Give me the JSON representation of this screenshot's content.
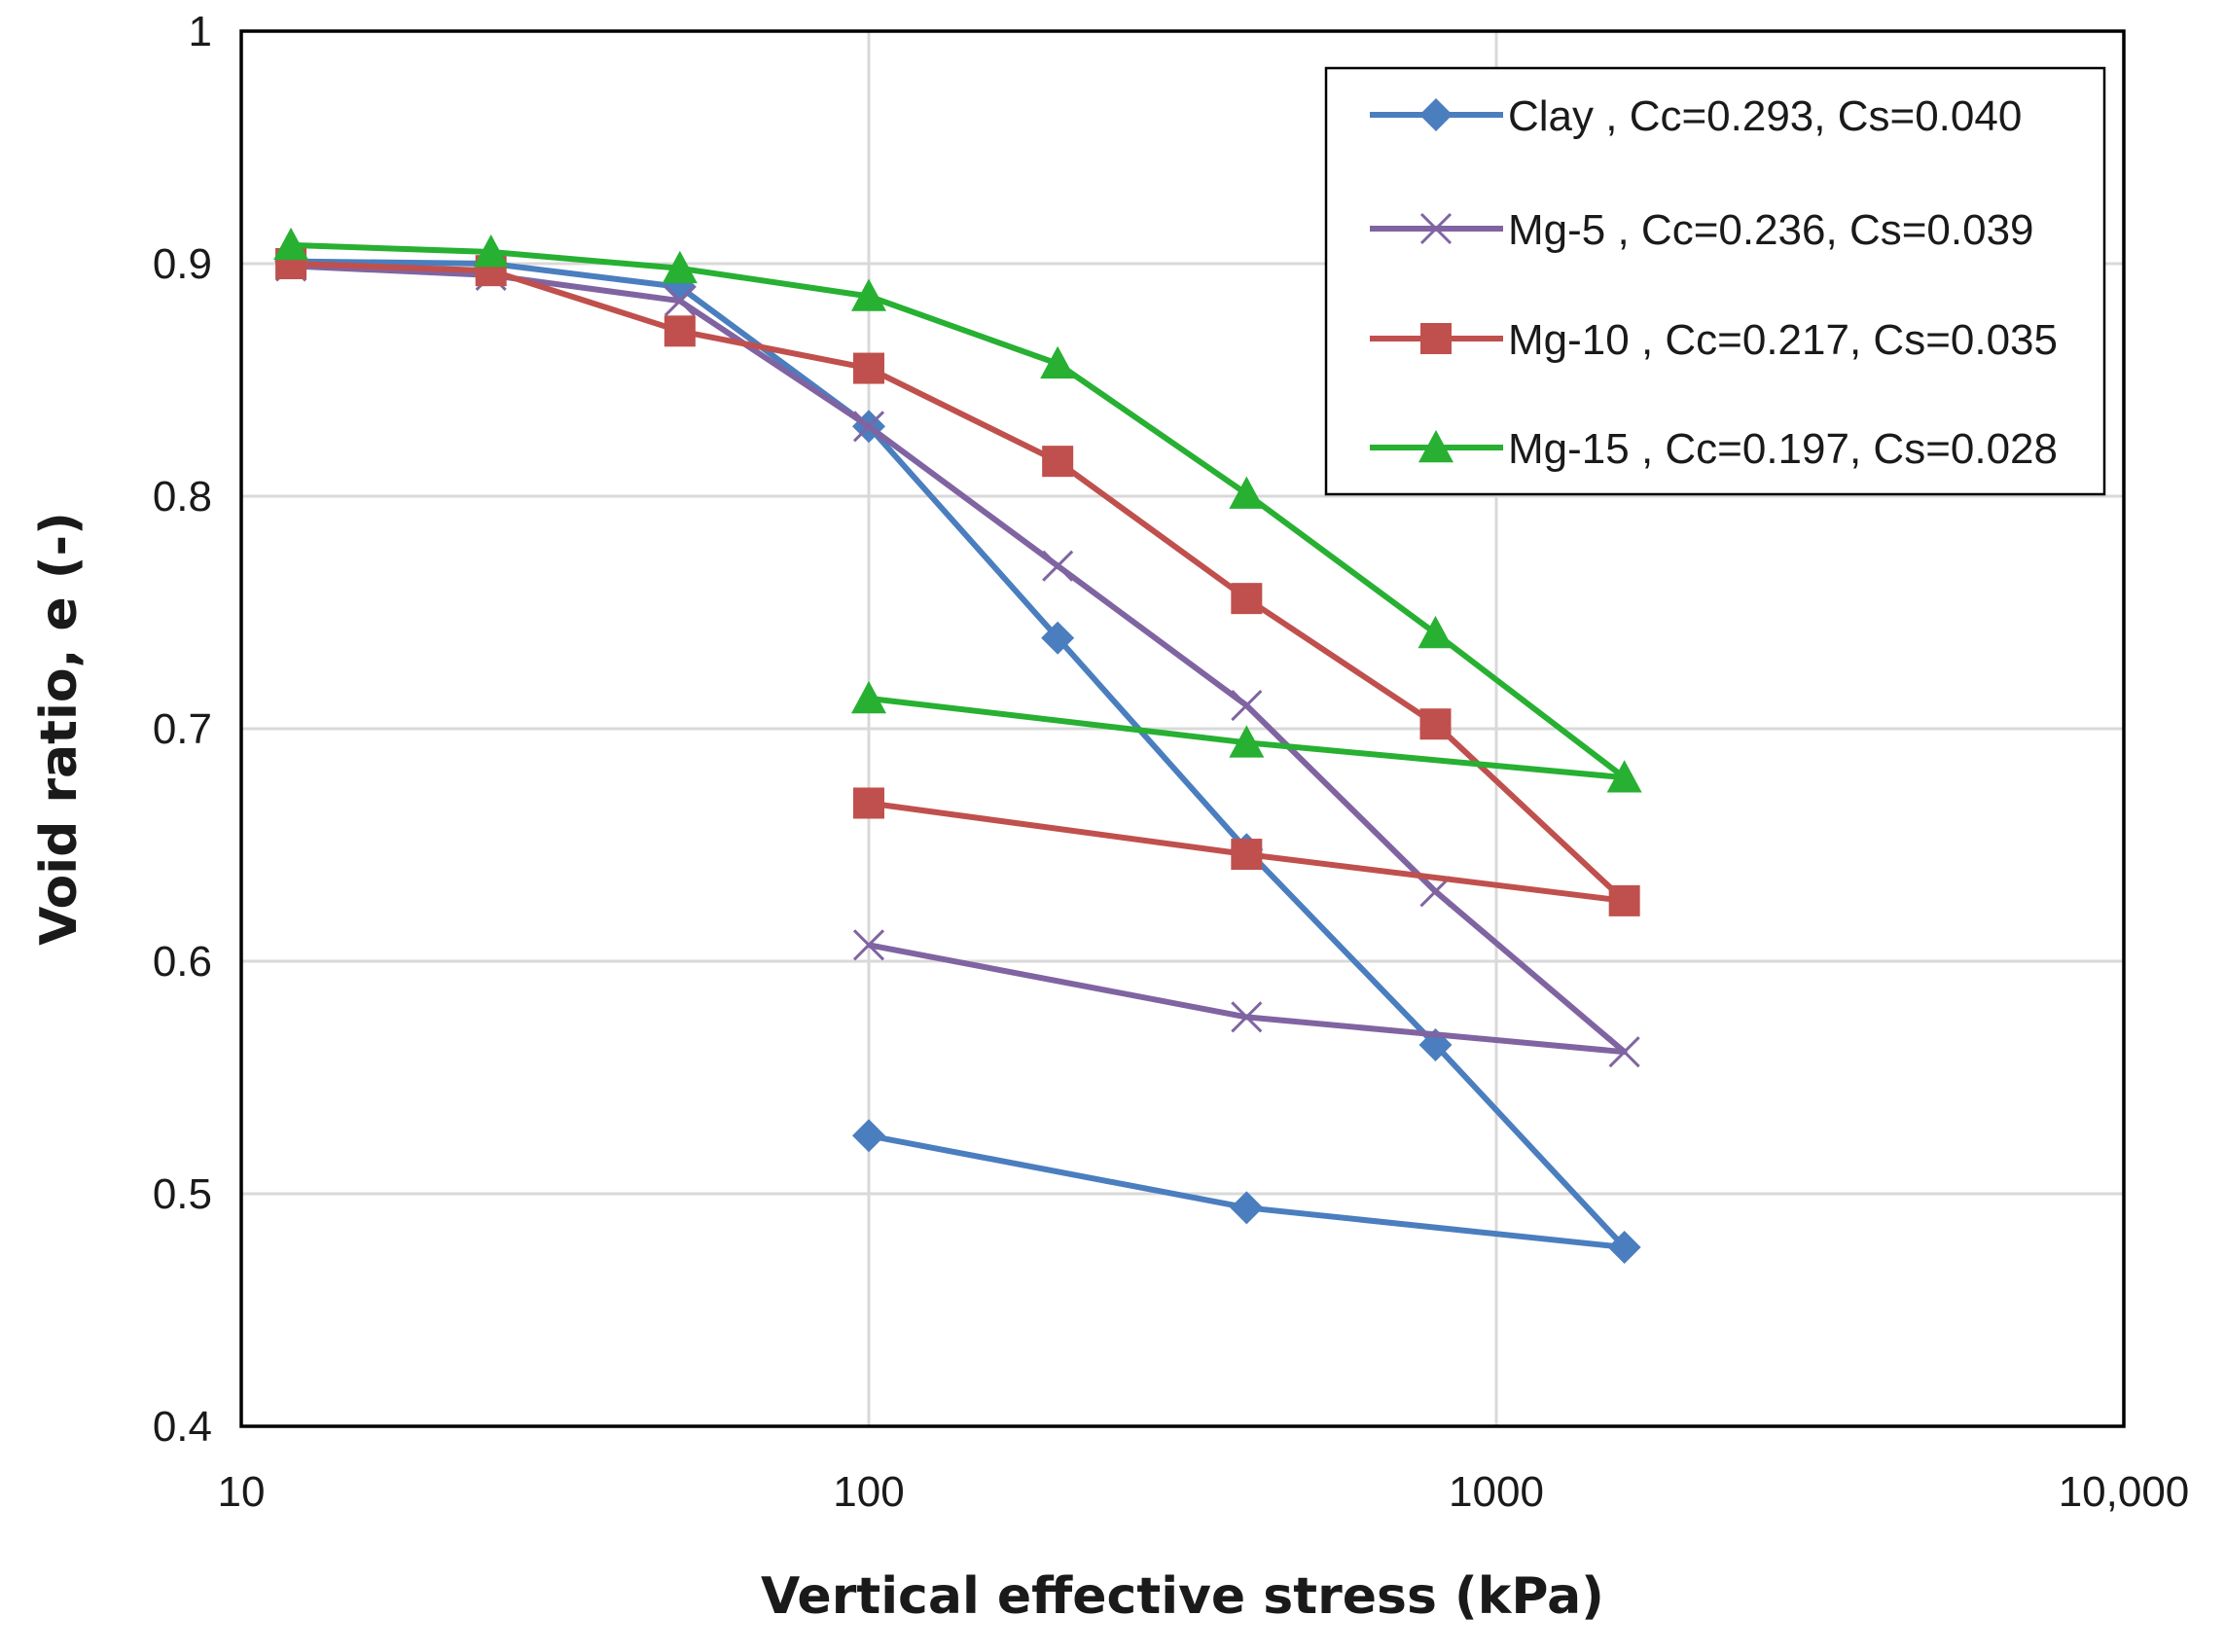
{
  "chart_data": {
    "type": "line",
    "title": "",
    "xlabel": "Vertical effective stress (kPa)",
    "ylabel": "Void ratio, e (-)",
    "xscale": "log",
    "xlim": [
      10,
      10000
    ],
    "ylim": [
      0.4,
      1.0
    ],
    "grid": true,
    "legend_position": "top-right",
    "xticks": [
      {
        "value": 10,
        "label": "10"
      },
      {
        "value": 100,
        "label": "100"
      },
      {
        "value": 1000,
        "label": "1000"
      },
      {
        "value": 10000,
        "label": "10,000"
      }
    ],
    "yticks": [
      {
        "value": 0.4,
        "label": "0.4"
      },
      {
        "value": 0.5,
        "label": "0.5"
      },
      {
        "value": 0.6,
        "label": "0.6"
      },
      {
        "value": 0.7,
        "label": "0.7"
      },
      {
        "value": 0.8,
        "label": "0.8"
      },
      {
        "value": 0.9,
        "label": "0.9"
      },
      {
        "value": 1.0,
        "label": "1"
      }
    ],
    "series": [
      {
        "name": "Clay , Cc=0.293, Cs=0.040",
        "color": "#4a7ebf",
        "marker": "diamond",
        "x": [
          12,
          25,
          50,
          100,
          200,
          400,
          800,
          1600,
          400,
          100
        ],
        "y": [
          0.901,
          0.9,
          0.89,
          0.83,
          0.739,
          0.648,
          0.564,
          0.477,
          0.494,
          0.525
        ]
      },
      {
        "name": "Mg-5 , Cc=0.236, Cs=0.039",
        "color": "#8064a2",
        "marker": "x",
        "x": [
          12,
          25,
          50,
          100,
          200,
          400,
          800,
          1600,
          400,
          100
        ],
        "y": [
          0.899,
          0.895,
          0.884,
          0.83,
          0.77,
          0.71,
          0.63,
          0.561,
          0.576,
          0.607
        ]
      },
      {
        "name": "Mg-10 , Cc=0.217, Cs=0.035",
        "color": "#c0504d",
        "marker": "square",
        "x": [
          12,
          25,
          50,
          100,
          200,
          400,
          800,
          1600,
          400,
          100
        ],
        "y": [
          0.9,
          0.897,
          0.871,
          0.855,
          0.815,
          0.756,
          0.702,
          0.626,
          0.646,
          0.668
        ]
      },
      {
        "name": "Mg-15 , Cc=0.197, Cs=0.028",
        "color": "#27b032",
        "marker": "triangle",
        "x": [
          12,
          25,
          50,
          100,
          200,
          400,
          800,
          1600,
          400,
          100
        ],
        "y": [
          0.908,
          0.905,
          0.898,
          0.886,
          0.857,
          0.801,
          0.741,
          0.679,
          0.694,
          0.713
        ]
      }
    ]
  }
}
